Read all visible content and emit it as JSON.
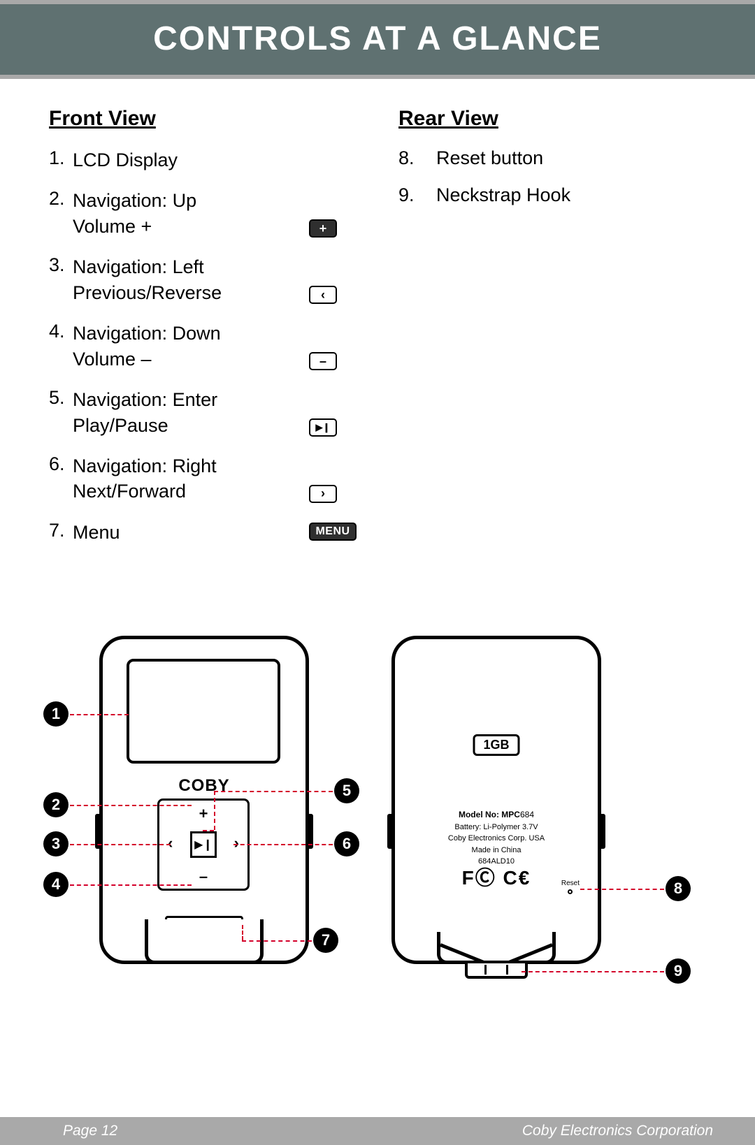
{
  "header": {
    "title": "CONTROLS AT A GLANCE"
  },
  "front": {
    "heading": "Front View",
    "items": [
      {
        "n": "1.",
        "text": "LCD Display",
        "icon": null
      },
      {
        "n": "2.",
        "text": "Navigation: Up\nVolume +",
        "icon": "plus"
      },
      {
        "n": "3.",
        "text": "Navigation: Left\nPrevious/Reverse",
        "icon": "left"
      },
      {
        "n": "4.",
        "text": "Navigation: Down\nVolume –",
        "icon": "minus"
      },
      {
        "n": "5.",
        "text": "Navigation: Enter\nPlay/Pause",
        "icon": "playpause"
      },
      {
        "n": "6.",
        "text": "Navigation: Right\nNext/Forward",
        "icon": "right"
      },
      {
        "n": "7.",
        "text": "Menu",
        "icon": "menu"
      }
    ]
  },
  "rear": {
    "heading": "Rear View",
    "items": [
      {
        "n": "8.",
        "text": "Reset button"
      },
      {
        "n": "9.",
        "text": "Neckstrap Hook"
      }
    ]
  },
  "device_front": {
    "brand": "COBY",
    "menu_label": "MENU",
    "callouts": [
      "1",
      "2",
      "3",
      "4",
      "5",
      "6",
      "7"
    ]
  },
  "device_rear": {
    "storage": "1GB",
    "model_label": "Model No: MPC",
    "model_no": "684",
    "battery": "Battery: Li-Polymer 3.7V",
    "corp": "Coby Electronics Corp. USA",
    "made": "Made in China",
    "code": "684ALD10",
    "cert": "FC CƐ",
    "reset": "Reset",
    "callouts": [
      "8",
      "9"
    ]
  },
  "footer": {
    "page": "Page 12",
    "corp": "Coby Electronics Corporation"
  },
  "colors": {
    "header_bg": "#5f7171",
    "band": "#a9a9a9",
    "leader": "#d4002a"
  }
}
